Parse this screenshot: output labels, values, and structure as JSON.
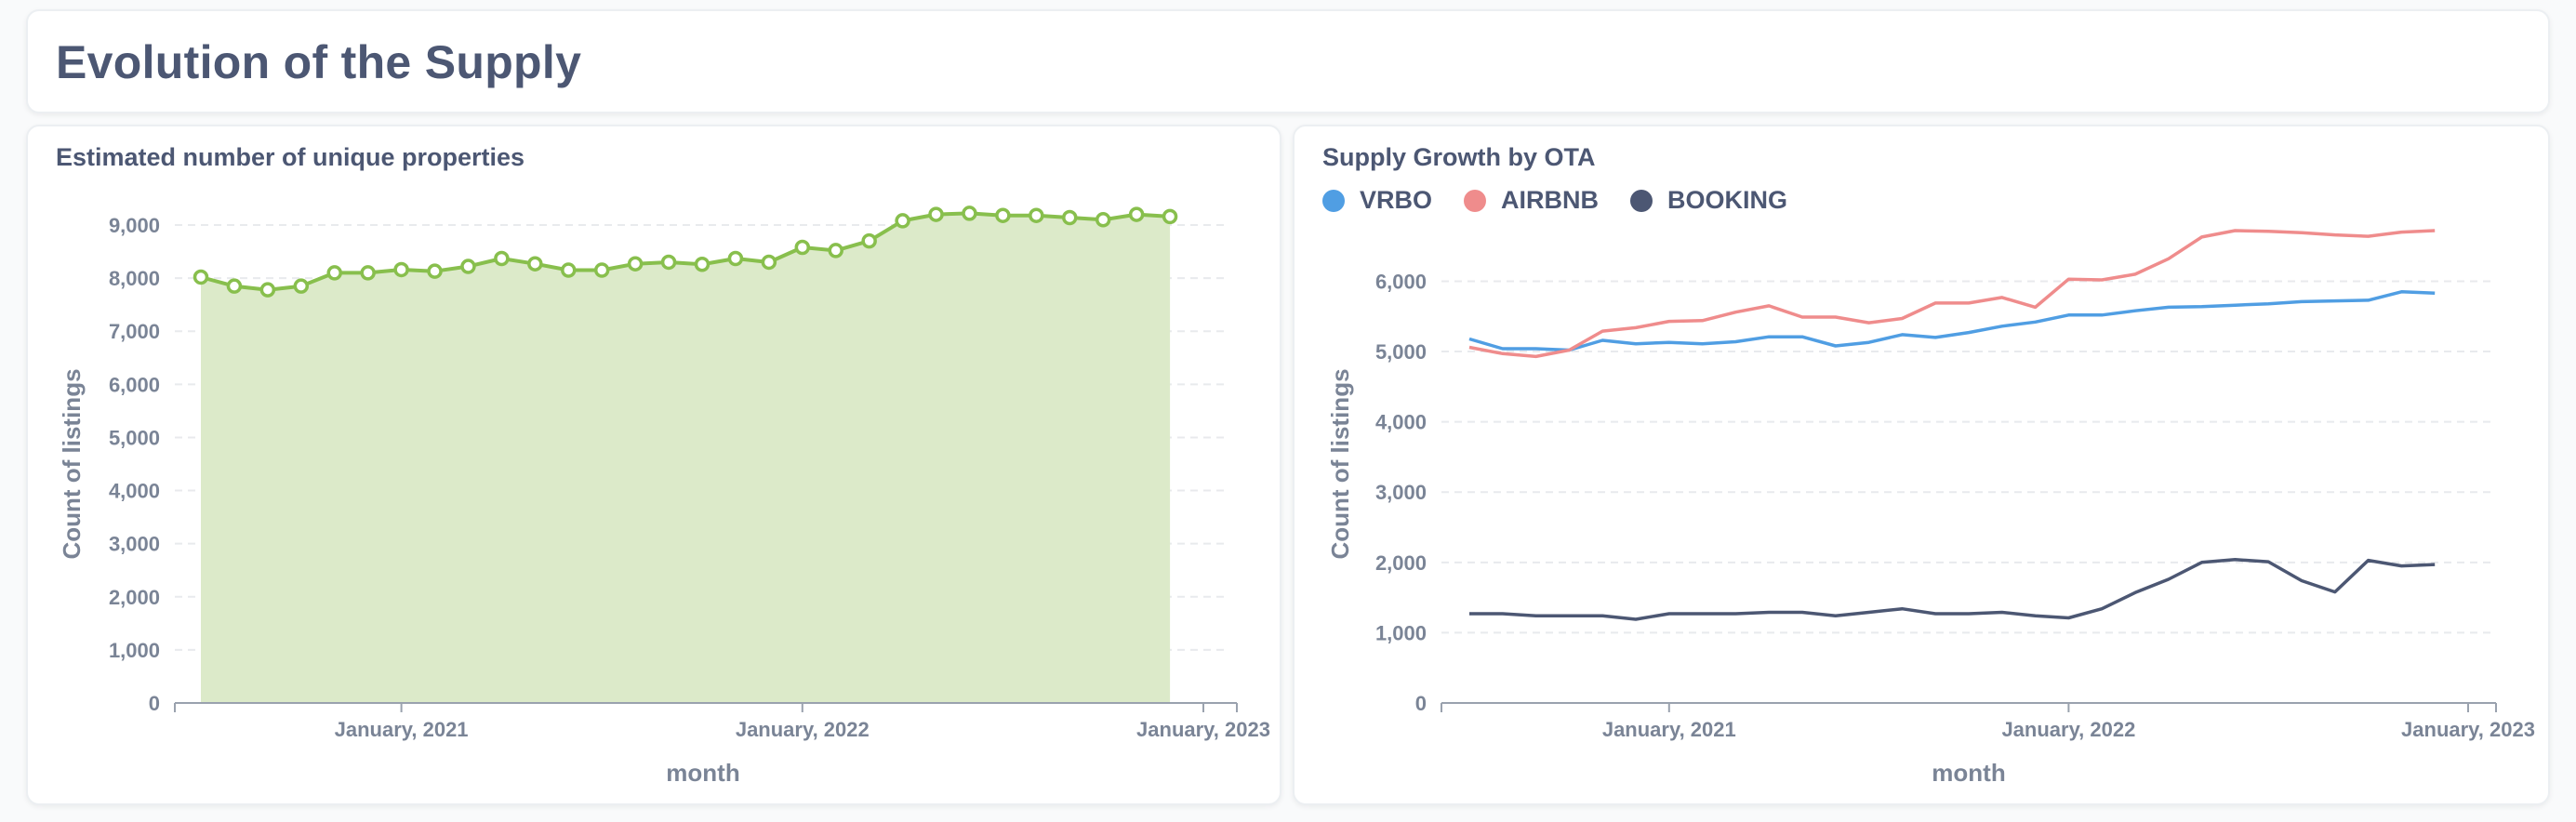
{
  "dashboard": {
    "title": "Evolution of the Supply"
  },
  "colors": {
    "green": "#88bf4d",
    "green_fill": "#dceac9",
    "vrbo": "#509ee3",
    "airbnb": "#ef8c8c",
    "booking": "#4c5773",
    "grid": "#e8eaed",
    "axis": "#7a8496"
  },
  "chart_data": [
    {
      "type": "area",
      "title": "Estimated number of unique properties",
      "xlabel": "month",
      "ylabel": "Count of listings",
      "x_start": "2020-07",
      "x_end": "2023-01",
      "x_ticks": [
        "January, 2021",
        "January, 2022",
        "January, 2023"
      ],
      "y_ticks": [
        "0",
        "1,000",
        "2,000",
        "3,000",
        "4,000",
        "5,000",
        "6,000",
        "7,000",
        "8,000",
        "9,000"
      ],
      "ylim": [
        0,
        9000
      ],
      "grid": true,
      "series": [
        {
          "values": [
            8020,
            7850,
            7780,
            7850,
            8100,
            8100,
            8160,
            8130,
            8220,
            8370,
            8270,
            8150,
            8150,
            8270,
            8300,
            8260,
            8370,
            8300,
            8580,
            8520,
            8700,
            9080,
            9200,
            9220,
            9180,
            9180,
            9140,
            9100,
            9200,
            9160
          ]
        }
      ]
    },
    {
      "type": "line",
      "title": "Supply Growth by OTA",
      "xlabel": "month",
      "ylabel": "Count of listings",
      "x_start": "2020-07",
      "x_end": "2023-01",
      "x_ticks": [
        "January, 2021",
        "January, 2022",
        "January, 2023"
      ],
      "y_ticks": [
        "0",
        "1,000",
        "2,000",
        "3,000",
        "4,000",
        "5,000",
        "6,000"
      ],
      "ylim": [
        0,
        6800
      ],
      "grid": true,
      "legend": "top-left",
      "series": [
        {
          "name": "VRBO",
          "values": [
            5180,
            5040,
            5040,
            5020,
            5160,
            5110,
            5130,
            5110,
            5140,
            5210,
            5210,
            5080,
            5130,
            5240,
            5200,
            5270,
            5360,
            5420,
            5520,
            5520,
            5580,
            5630,
            5640,
            5660,
            5680,
            5710,
            5720,
            5730,
            5850,
            5830
          ]
        },
        {
          "name": "AIRBNB",
          "values": [
            5060,
            4970,
            4930,
            5020,
            5290,
            5340,
            5430,
            5440,
            5560,
            5650,
            5490,
            5490,
            5410,
            5470,
            5690,
            5690,
            5770,
            5630,
            6030,
            6020,
            6100,
            6320,
            6630,
            6720,
            6710,
            6690,
            6660,
            6640,
            6700,
            6720
          ]
        },
        {
          "name": "BOOKING",
          "values": [
            1270,
            1270,
            1240,
            1240,
            1240,
            1190,
            1270,
            1270,
            1270,
            1290,
            1290,
            1240,
            1290,
            1340,
            1270,
            1270,
            1290,
            1240,
            1210,
            1340,
            1570,
            1760,
            2000,
            2040,
            2010,
            1740,
            1580,
            2030,
            1950,
            1970
          ]
        }
      ]
    }
  ]
}
